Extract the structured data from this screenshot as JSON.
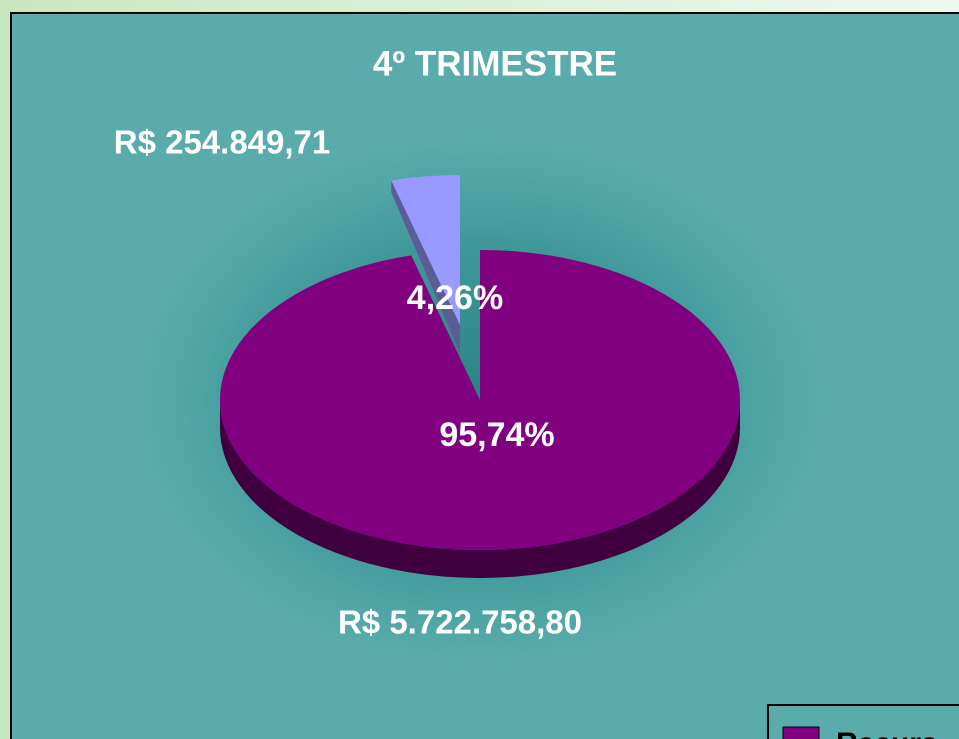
{
  "chart_data": {
    "type": "pie3d",
    "title": "4º TRIMESTRE",
    "categories": [
      "Recurs",
      null
    ],
    "values": [
      95.74,
      4.26
    ],
    "value_labels": [
      "95,74%",
      "4,26%"
    ],
    "amount_labels": [
      "R$ 5.722.758,80",
      "R$ 254.849,71"
    ],
    "colors": [
      "#800080",
      "#9999ff"
    ],
    "side_colors": [
      "#400040",
      "#5c5c99"
    ],
    "exploded": [
      false,
      true
    ]
  }
}
